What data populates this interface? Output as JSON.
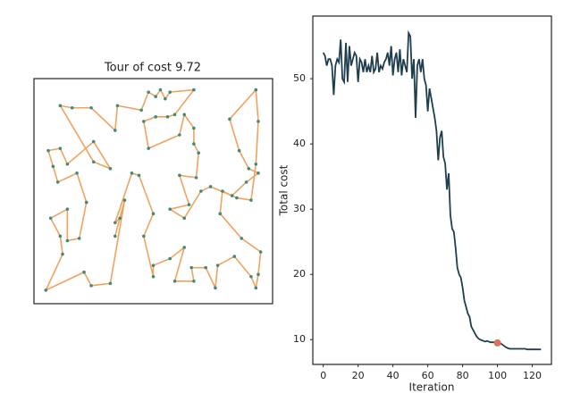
{
  "chart_data": [
    {
      "type": "tour",
      "title": "Tour of cost 9.72",
      "line_color": "#f0a35e",
      "point_color": "#3d8c7a",
      "xlim": [
        0,
        100
      ],
      "ylim": [
        0,
        100
      ],
      "x": [
        11,
        16,
        24,
        34,
        35,
        45,
        48,
        51,
        53,
        55,
        57,
        67,
        59,
        56,
        51,
        46,
        48,
        61,
        63,
        67,
        67,
        69,
        68,
        61,
        65,
        57,
        63,
        70,
        74,
        83,
        89,
        94,
        90,
        86,
        82,
        93,
        94,
        93,
        91,
        85,
        79,
        78,
        87,
        95,
        94,
        93,
        91,
        84,
        77,
        76,
        72,
        66,
        67,
        59,
        63,
        57,
        50,
        50,
        46,
        50,
        44,
        41,
        34,
        36,
        34,
        38,
        32,
        24,
        21,
        5,
        12,
        11,
        7,
        14,
        14,
        19,
        22,
        18,
        10,
        8,
        6,
        11,
        14,
        25,
        32,
        25
      ],
      "y": [
        88,
        87,
        87,
        77,
        88,
        86,
        94,
        92,
        95,
        91,
        94,
        95,
        84,
        83,
        83,
        81,
        69,
        75,
        84,
        78,
        71,
        67,
        56,
        57,
        44,
        42,
        38,
        50,
        52,
        48,
        54,
        58,
        60,
        68,
        82,
        95,
        81,
        62,
        46,
        47,
        50,
        40,
        29,
        23,
        13,
        7,
        12,
        21,
        17,
        7,
        16,
        16,
        10,
        10,
        25,
        20,
        17,
        12,
        30,
        40,
        57,
        58,
        36,
        38,
        30,
        46,
        9,
        8,
        14,
        6,
        22,
        30,
        38,
        42,
        28,
        29,
        45,
        58,
        54,
        61,
        68,
        69,
        62,
        72,
        60,
        63
      ]
    },
    {
      "type": "line",
      "xlabel": "Iteration",
      "ylabel": "Total cost",
      "color": "#1f3f4e",
      "xlim": [
        -6,
        131
      ],
      "ylim": [
        6.2,
        59.6
      ],
      "xticks": [
        0,
        20,
        40,
        60,
        80,
        100,
        120
      ],
      "yticks": [
        10,
        20,
        30,
        40,
        50
      ],
      "x": [
        0,
        1,
        2,
        3,
        4,
        5,
        6,
        7,
        8,
        9,
        10,
        11,
        12,
        13,
        14,
        15,
        16,
        17,
        18,
        19,
        20,
        21,
        22,
        23,
        24,
        25,
        26,
        27,
        28,
        29,
        30,
        31,
        32,
        33,
        34,
        35,
        36,
        37,
        38,
        39,
        40,
        41,
        42,
        43,
        44,
        45,
        46,
        47,
        48,
        49,
        50,
        51,
        52,
        53,
        54,
        55,
        56,
        57,
        58,
        59,
        60,
        61,
        62,
        63,
        64,
        65,
        66,
        67,
        68,
        69,
        70,
        71,
        72,
        73,
        74,
        75,
        76,
        77,
        78,
        79,
        80,
        81,
        82,
        83,
        84,
        85,
        86,
        87,
        88,
        89,
        90,
        91,
        92,
        93,
        94,
        95,
        96,
        97,
        98,
        99,
        100,
        101,
        102,
        103,
        104,
        105,
        106,
        107,
        108,
        109,
        110,
        111,
        112,
        113,
        114,
        115,
        116,
        117,
        118,
        119,
        120,
        121,
        122,
        123,
        124,
        125
      ],
      "values": [
        54,
        53.5,
        52,
        53,
        53,
        52,
        47.5,
        52,
        53,
        52.5,
        56,
        50,
        49.5,
        55.5,
        49.5,
        55,
        52,
        53,
        54,
        53.5,
        49.5,
        53,
        52.5,
        51,
        53,
        51,
        52,
        51,
        53.5,
        51,
        51.5,
        54,
        51,
        52,
        51.5,
        52.5,
        53,
        54,
        52,
        55,
        50.5,
        53,
        54,
        51,
        54.5,
        50.5,
        53,
        52,
        51,
        57,
        56.5,
        50,
        53,
        44,
        52,
        53,
        51,
        53,
        50,
        49,
        45,
        48.5,
        47,
        45.5,
        44,
        42,
        37.5,
        41,
        42,
        38,
        37,
        33,
        35.5,
        29,
        27,
        26.5,
        24,
        21,
        20,
        19.5,
        18,
        16,
        15,
        14,
        13.5,
        12,
        11.5,
        11,
        10.5,
        10.2,
        10,
        9.9,
        9.8,
        9.7,
        9.8,
        9.7,
        9.6,
        9.6,
        9.6,
        9.5,
        9.5,
        9.5,
        9.4,
        9.2,
        9,
        8.8,
        8.7,
        8.6,
        8.6,
        8.6,
        8.6,
        8.6,
        8.6,
        8.6,
        8.6,
        8.6,
        8.6,
        8.5,
        8.5,
        8.5,
        8.5,
        8.5,
        8.5,
        8.5,
        8.5,
        8.5
      ],
      "highlight": {
        "x": 100,
        "y": 9.5,
        "color": "#d9735a"
      }
    }
  ]
}
